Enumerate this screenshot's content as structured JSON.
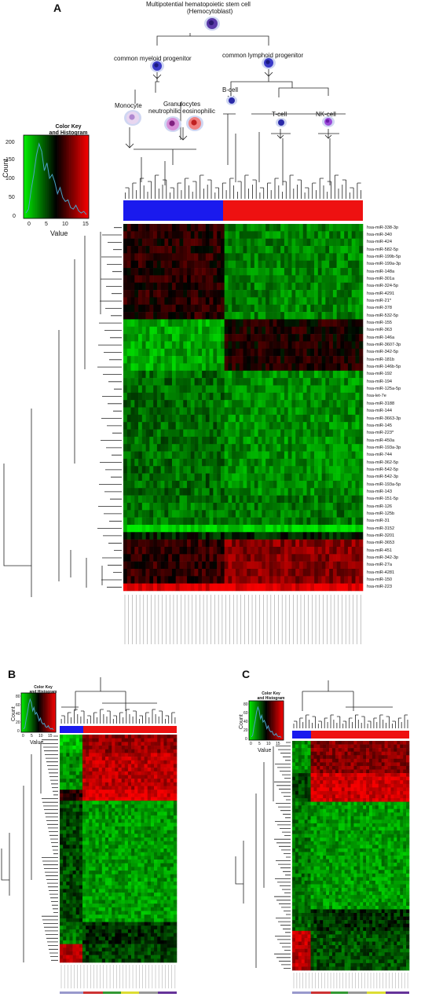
{
  "panels": {
    "a": "A",
    "b": "B",
    "c": "C"
  },
  "tree": {
    "root": "Multipotential hematopoietic stem cell",
    "root_sub": "(Hemocytoblast)",
    "myeloid": "common myeloid progenitor",
    "lymphoid": "common lymphoid progenitor",
    "monocyte": "Monocyte",
    "granulocytes": "Granulocytes",
    "granulocytes_sub": "neutrophilic eosinophilic",
    "bcell": "B-cell",
    "tcell": "T-cell",
    "nkcell": "NK-cell"
  },
  "color_key": {
    "title_line1": "Color Key",
    "title_line2": "and Histogram",
    "ylabel": "Count",
    "xlabel": "Value",
    "xticks": [
      "0",
      "5",
      "10",
      "15"
    ],
    "yticks_a": [
      "0",
      "50",
      "100",
      "150",
      "200"
    ],
    "yticks_bc": [
      "0",
      "20",
      "40",
      "60",
      "80"
    ]
  },
  "colors": {
    "myeloid": "#1a1aee",
    "lymphoid": "#ee1111",
    "low": "#00ee00",
    "mid": "#000000",
    "high": "#ff0000"
  },
  "mirnas_a": [
    "hsa-miR-338-3p",
    "hsa-miR-340",
    "hsa-miR-424",
    "hsa-miR-582-5p",
    "hsa-miR-199b-5p",
    "hsa-miR-199a-3p",
    "hsa-miR-148a",
    "hsa-miR-301a",
    "hsa-miR-324-5p",
    "hsa-miR-4291",
    "hsa-miR-21*",
    "hsa-miR-378",
    "hsa-miR-532-5p",
    "hsa-miR-155",
    "hsa-miR-363",
    "hsa-miR-146a",
    "hsa-miR-3607-3p",
    "hsa-miR-342-5p",
    "hsa-miR-181b",
    "hsa-miR-146b-5p",
    "hsa-miR-192",
    "hsa-miR-194",
    "hsa-miR-125a-5p",
    "hsa-let-7e",
    "hsa-miR-3188",
    "hsa-miR-144",
    "hsa-miR-3663-3p",
    "hsa-miR-145",
    "hsa-miR-223*",
    "hsa-miR-450a",
    "hsa-miR-193a-3p",
    "hsa-miR-744",
    "hsa-miR-362-5p",
    "hsa-miR-542-5p",
    "hsa-miR-542-3p",
    "hsa-miR-193a-5p",
    "hsa-miR-143",
    "hsa-miR-151-5p",
    "hsa-miR-126",
    "hsa-miR-125b",
    "hsa-miR-31",
    "hsa-miR-3152",
    "hsa-miR-3201",
    "hsa-miR-3653",
    "hsa-miR-451",
    "hsa-miR-342-3p",
    "hsa-miR-27a",
    "hsa-miR-4281",
    "hsa-miR-150",
    "hsa-miR-223"
  ]
}
